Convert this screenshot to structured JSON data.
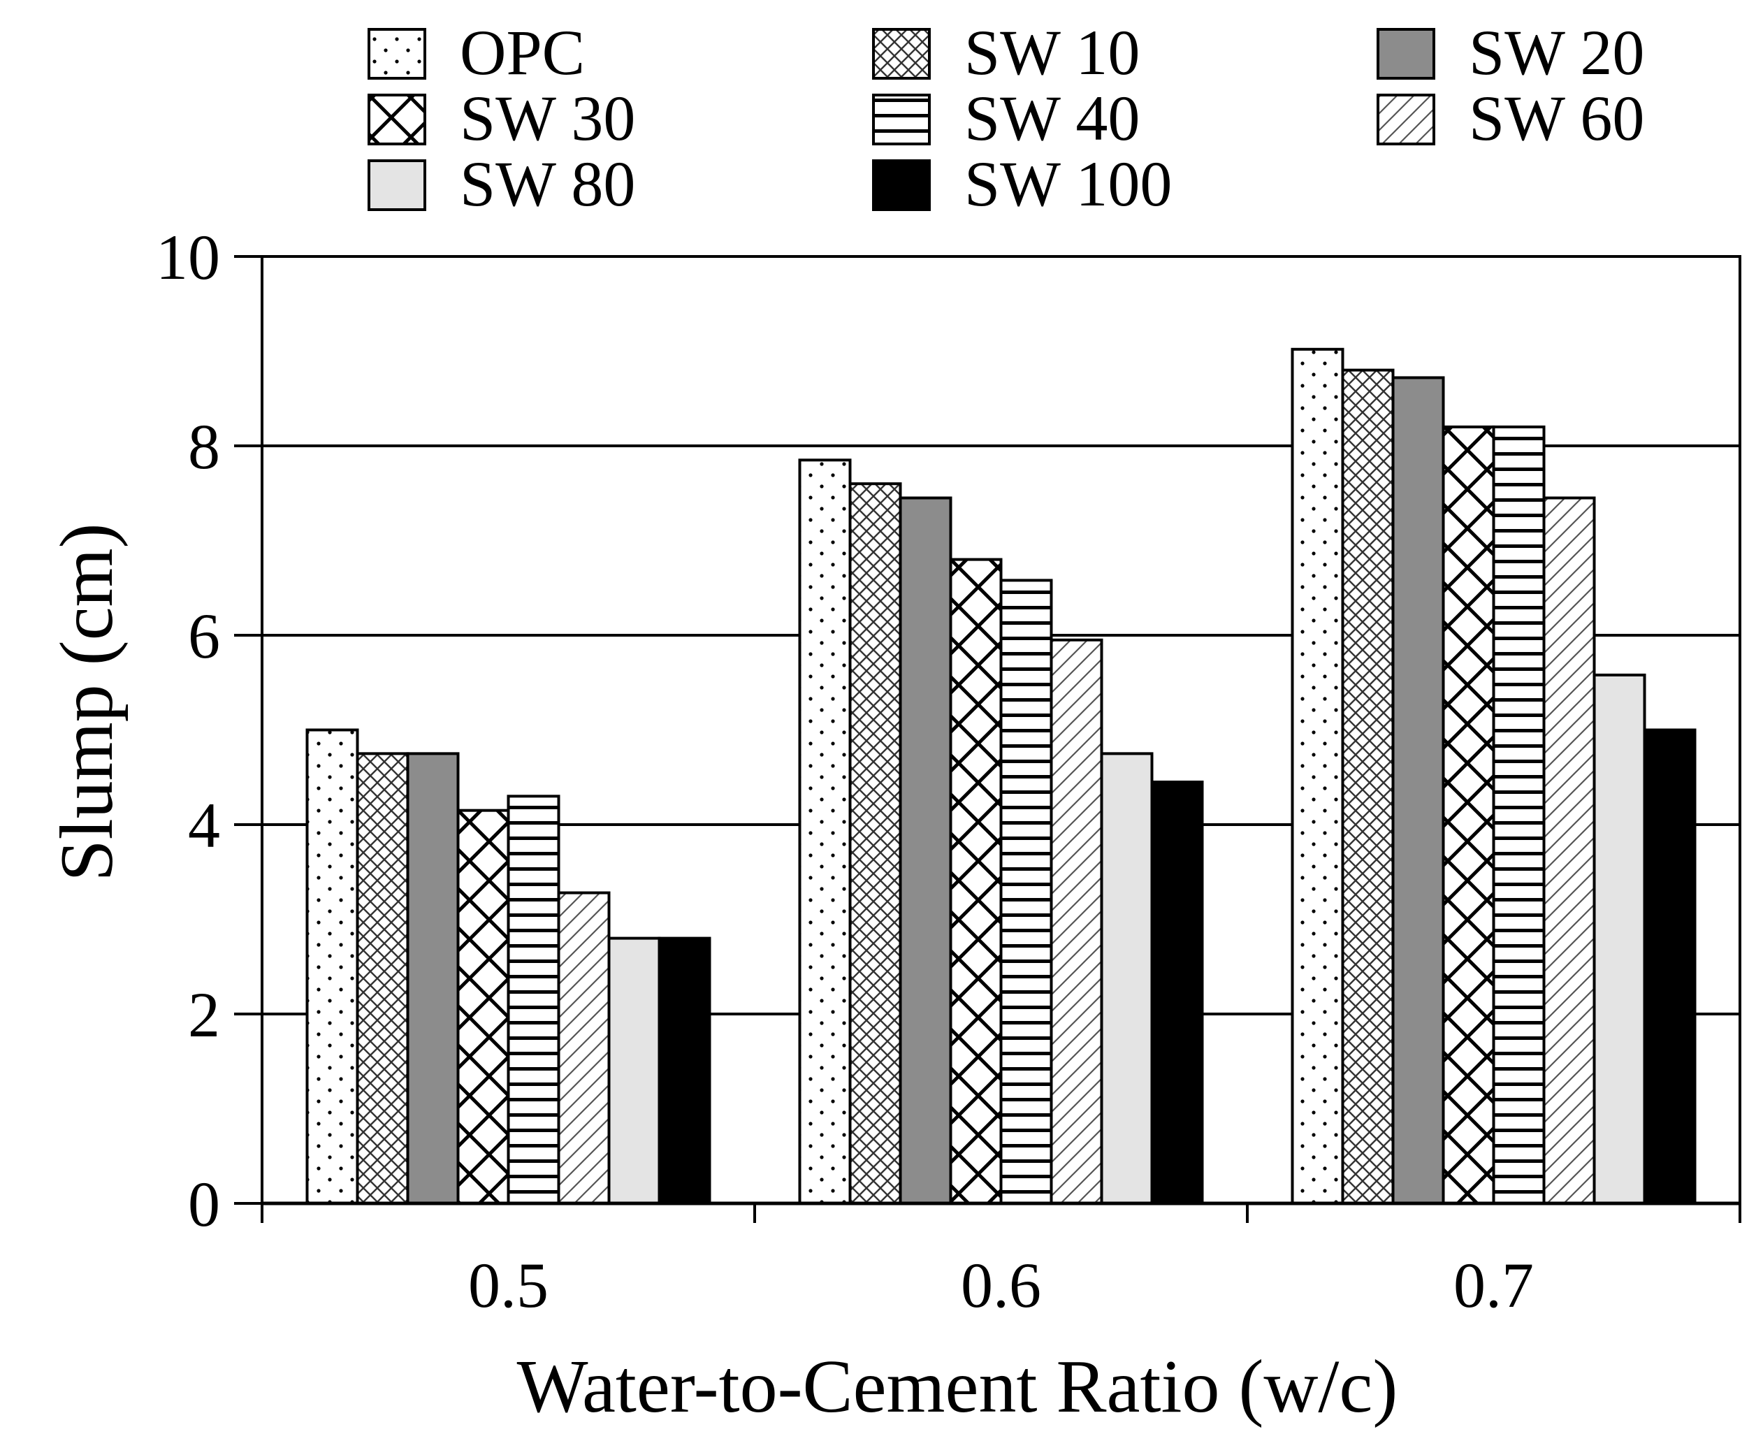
{
  "chart_data": {
    "type": "bar",
    "title": "",
    "xlabel": "Water-to-Cement Ratio (w/c)",
    "ylabel": "Slump (cm)",
    "categories": [
      "0.5",
      "0.6",
      "0.7"
    ],
    "ylim": [
      0,
      10
    ],
    "yticks": [
      "0",
      "2",
      "4",
      "6",
      "8",
      "10"
    ],
    "grid": "horizontal",
    "legend_position": "top",
    "series": [
      {
        "name": "OPC",
        "pattern": "dots",
        "values": [
          5.0,
          7.85,
          9.02
        ]
      },
      {
        "name": "SW 10",
        "pattern": "fine-cross",
        "values": [
          4.75,
          7.6,
          8.8
        ]
      },
      {
        "name": "SW 20",
        "pattern": "solid-gray",
        "values": [
          4.75,
          7.45,
          8.72
        ]
      },
      {
        "name": "SW 30",
        "pattern": "diag-cross",
        "values": [
          4.15,
          6.8,
          8.2
        ]
      },
      {
        "name": "SW 40",
        "pattern": "horizontal",
        "values": [
          4.3,
          6.58,
          8.2
        ]
      },
      {
        "name": "SW 60",
        "pattern": "diagonal",
        "values": [
          3.28,
          5.95,
          7.45
        ]
      },
      {
        "name": "SW 80",
        "pattern": "light-gray",
        "values": [
          2.8,
          4.75,
          5.58
        ]
      },
      {
        "name": "SW 100",
        "pattern": "black",
        "values": [
          2.8,
          4.45,
          5.0
        ]
      }
    ],
    "colors": {
      "solid_gray": "#8c8c8c",
      "light_gray": "#e4e4e4",
      "black": "#000000"
    }
  }
}
